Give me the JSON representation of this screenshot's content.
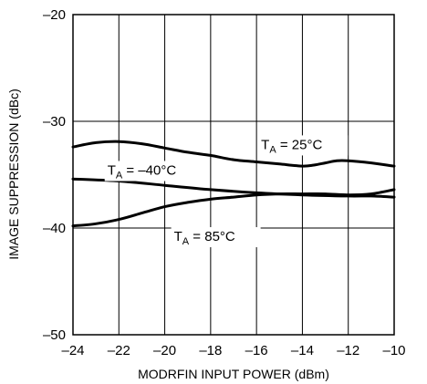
{
  "chart_data": {
    "type": "line",
    "title": "",
    "xlabel": "MODRFIN INPUT POWER (dBm)",
    "ylabel": "IMAGE SUPPRESSION (dBc)",
    "xlim": [
      -24,
      -10
    ],
    "ylim": [
      -50,
      -20
    ],
    "x_ticks": [
      -24,
      -22,
      -20,
      -18,
      -16,
      -14,
      -12,
      -10
    ],
    "y_ticks": [
      -20,
      -30,
      -40,
      -50
    ],
    "x_tick_labels": [
      "–24",
      "–22",
      "–20",
      "–18",
      "–16",
      "–14",
      "–12",
      "–10"
    ],
    "y_tick_labels": [
      "–20",
      "–30",
      "–40",
      "–50"
    ],
    "grid": true,
    "legend": "none",
    "series": [
      {
        "name": "TA = 25°C",
        "label_main": "T",
        "label_sub": "A",
        "label_rest": " = 25°C",
        "x": [
          -24,
          -23,
          -22,
          -21,
          -20,
          -19,
          -18,
          -17,
          -16,
          -15,
          -14,
          -13.5,
          -13,
          -12.5,
          -12,
          -11,
          -10
        ],
        "y": [
          -32.4,
          -32.0,
          -31.9,
          -32.1,
          -32.5,
          -32.9,
          -33.2,
          -33.6,
          -33.8,
          -34.0,
          -34.2,
          -34.1,
          -33.9,
          -33.7,
          -33.7,
          -33.9,
          -34.2
        ]
      },
      {
        "name": "TA = –40°C",
        "label_main": "T",
        "label_sub": "A",
        "label_rest": " = –40°C",
        "x": [
          -24,
          -22,
          -20,
          -18,
          -16,
          -14,
          -12,
          -11,
          -10
        ],
        "y": [
          -35.4,
          -35.6,
          -36.0,
          -36.4,
          -36.7,
          -36.9,
          -37.0,
          -37.0,
          -37.1
        ]
      },
      {
        "name": "TA = 85°C",
        "label_main": "T",
        "label_sub": "A",
        "label_rest": " = 85°C",
        "x": [
          -24,
          -23,
          -22,
          -21,
          -20,
          -19,
          -18,
          -17,
          -16,
          -15,
          -14,
          -13,
          -12,
          -11,
          -10
        ],
        "y": [
          -39.8,
          -39.6,
          -39.2,
          -38.6,
          -38.0,
          -37.6,
          -37.3,
          -37.1,
          -36.9,
          -36.8,
          -36.8,
          -36.8,
          -36.9,
          -36.8,
          -36.4
        ]
      }
    ]
  }
}
